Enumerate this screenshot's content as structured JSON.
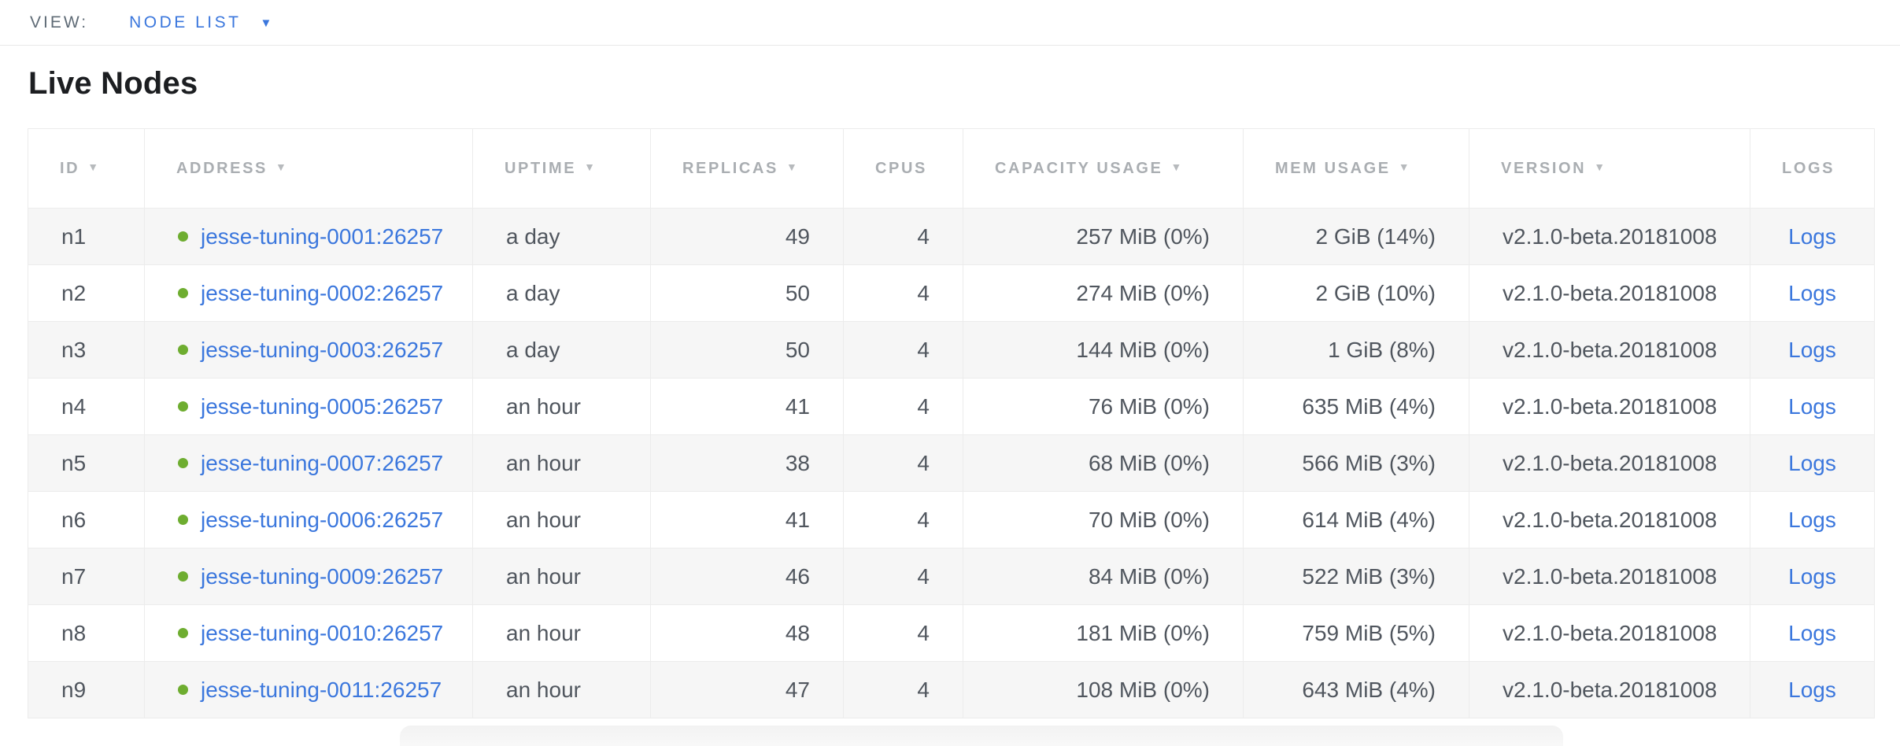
{
  "view_bar": {
    "label": "VIEW:",
    "selected_view": "NODE LIST"
  },
  "page": {
    "title": "Live Nodes"
  },
  "icons": {
    "dropdown_caret": "▼",
    "sort_desc": "▼",
    "node_status": "healthy-green-dot"
  },
  "colors": {
    "accent_blue": "#3b77dd",
    "status_green": "#6ead30",
    "header_gray": "#aaaeb2",
    "body_text": "#50565e",
    "row_alt_bg": "#f6f6f6"
  },
  "table": {
    "columns": [
      {
        "key": "id",
        "label": "ID",
        "sortable": true
      },
      {
        "key": "address",
        "label": "ADDRESS",
        "sortable": true
      },
      {
        "key": "uptime",
        "label": "UPTIME",
        "sortable": true
      },
      {
        "key": "replicas",
        "label": "REPLICAS",
        "sortable": true
      },
      {
        "key": "cpus",
        "label": "CPUS",
        "sortable": false
      },
      {
        "key": "capacity",
        "label": "CAPACITY USAGE",
        "sortable": true
      },
      {
        "key": "mem",
        "label": "MEM USAGE",
        "sortable": true
      },
      {
        "key": "version",
        "label": "VERSION",
        "sortable": true
      },
      {
        "key": "logs",
        "label": "LOGS",
        "sortable": false
      }
    ],
    "rows": [
      {
        "id": "n1",
        "address": "jesse-tuning-0001:26257",
        "uptime": "a day",
        "replicas": "49",
        "cpus": "4",
        "capacity": "257 MiB (0%)",
        "mem": "2 GiB (14%)",
        "version": "v2.1.0-beta.20181008",
        "logs": "Logs"
      },
      {
        "id": "n2",
        "address": "jesse-tuning-0002:26257",
        "uptime": "a day",
        "replicas": "50",
        "cpus": "4",
        "capacity": "274 MiB (0%)",
        "mem": "2 GiB (10%)",
        "version": "v2.1.0-beta.20181008",
        "logs": "Logs"
      },
      {
        "id": "n3",
        "address": "jesse-tuning-0003:26257",
        "uptime": "a day",
        "replicas": "50",
        "cpus": "4",
        "capacity": "144 MiB (0%)",
        "mem": "1 GiB (8%)",
        "version": "v2.1.0-beta.20181008",
        "logs": "Logs"
      },
      {
        "id": "n4",
        "address": "jesse-tuning-0005:26257",
        "uptime": "an hour",
        "replicas": "41",
        "cpus": "4",
        "capacity": "76 MiB (0%)",
        "mem": "635 MiB (4%)",
        "version": "v2.1.0-beta.20181008",
        "logs": "Logs"
      },
      {
        "id": "n5",
        "address": "jesse-tuning-0007:26257",
        "uptime": "an hour",
        "replicas": "38",
        "cpus": "4",
        "capacity": "68 MiB (0%)",
        "mem": "566 MiB (3%)",
        "version": "v2.1.0-beta.20181008",
        "logs": "Logs"
      },
      {
        "id": "n6",
        "address": "jesse-tuning-0006:26257",
        "uptime": "an hour",
        "replicas": "41",
        "cpus": "4",
        "capacity": "70 MiB (0%)",
        "mem": "614 MiB (4%)",
        "version": "v2.1.0-beta.20181008",
        "logs": "Logs"
      },
      {
        "id": "n7",
        "address": "jesse-tuning-0009:26257",
        "uptime": "an hour",
        "replicas": "46",
        "cpus": "4",
        "capacity": "84 MiB (0%)",
        "mem": "522 MiB (3%)",
        "version": "v2.1.0-beta.20181008",
        "logs": "Logs"
      },
      {
        "id": "n8",
        "address": "jesse-tuning-0010:26257",
        "uptime": "an hour",
        "replicas": "48",
        "cpus": "4",
        "capacity": "181 MiB (0%)",
        "mem": "759 MiB (5%)",
        "version": "v2.1.0-beta.20181008",
        "logs": "Logs"
      },
      {
        "id": "n9",
        "address": "jesse-tuning-0011:26257",
        "uptime": "an hour",
        "replicas": "47",
        "cpus": "4",
        "capacity": "108 MiB (0%)",
        "mem": "643 MiB (4%)",
        "version": "v2.1.0-beta.20181008",
        "logs": "Logs"
      }
    ]
  }
}
